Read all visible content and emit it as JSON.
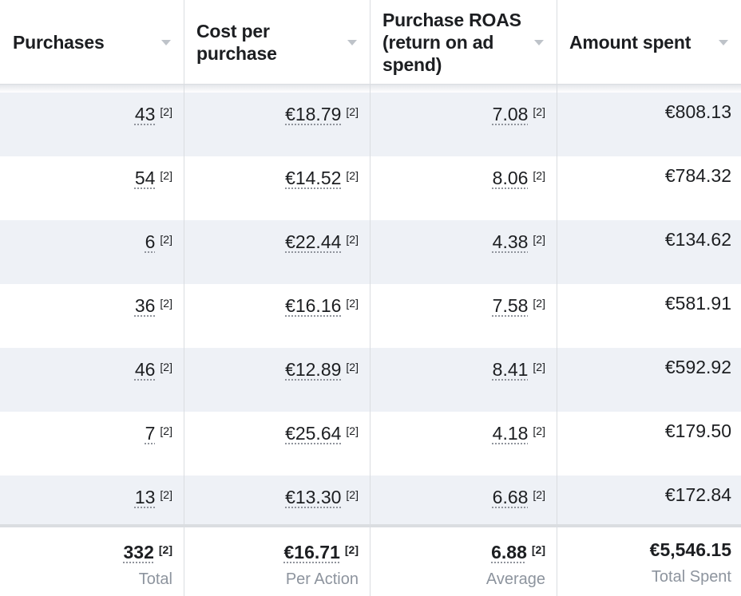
{
  "columns": [
    {
      "label": "Purchases"
    },
    {
      "label": "Cost per purchase"
    },
    {
      "label": "Purchase ROAS (return on ad spend)"
    },
    {
      "label": "Amount spent"
    }
  ],
  "rows": [
    {
      "purchases": "43",
      "cost": "€18.79",
      "roas": "7.08",
      "spent": "€808.13"
    },
    {
      "purchases": "54",
      "cost": "€14.52",
      "roas": "8.06",
      "spent": "€784.32"
    },
    {
      "purchases": "6",
      "cost": "€22.44",
      "roas": "4.38",
      "spent": "€134.62"
    },
    {
      "purchases": "36",
      "cost": "€16.16",
      "roas": "7.58",
      "spent": "€581.91"
    },
    {
      "purchases": "46",
      "cost": "€12.89",
      "roas": "8.41",
      "spent": "€592.92"
    },
    {
      "purchases": "7",
      "cost": "€25.64",
      "roas": "4.18",
      "spent": "€179.50"
    },
    {
      "purchases": "13",
      "cost": "€13.30",
      "roas": "6.68",
      "spent": "€172.84"
    }
  ],
  "footnote_marker": "[2]",
  "totals": {
    "purchases": {
      "value": "332",
      "label": "Total"
    },
    "cost": {
      "value": "€16.71",
      "label": "Per Action"
    },
    "roas": {
      "value": "6.88",
      "label": "Average"
    },
    "spent": {
      "value": "€5,546.15",
      "label": "Total Spent"
    }
  },
  "colors": {
    "stripe": "#eef1f6",
    "divider": "#dadde1",
    "muted": "#8d949e"
  }
}
